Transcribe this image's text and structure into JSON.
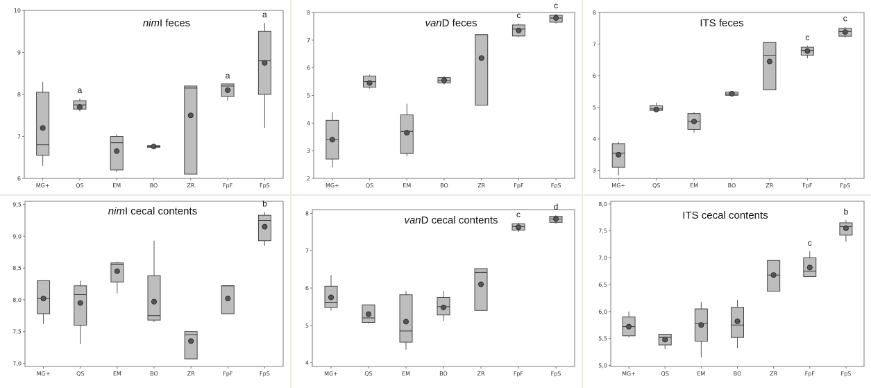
{
  "chart_data": [
    {
      "type": "boxplot",
      "title_italic": "nim",
      "title_rest": "I feces",
      "categories": [
        "MG+",
        "QS",
        "EM",
        "BO",
        "ZR",
        "FpF",
        "FpS"
      ],
      "ylim": [
        6,
        10
      ],
      "yticks": [
        "6",
        "7",
        "8",
        "9",
        "10"
      ],
      "boxes": [
        {
          "min": 6.3,
          "q1": 6.55,
          "median": 6.8,
          "q3": 8.05,
          "max": 8.3,
          "mean": 7.2
        },
        {
          "min": 7.6,
          "q1": 7.65,
          "median": 7.75,
          "q3": 7.85,
          "max": 7.9,
          "mean": 7.7
        },
        {
          "min": 6.15,
          "q1": 6.2,
          "median": 6.85,
          "q3": 7.0,
          "max": 7.05,
          "mean": 6.65
        },
        {
          "min": 6.72,
          "q1": 6.74,
          "median": 6.76,
          "q3": 6.78,
          "max": 6.8,
          "mean": 6.76
        },
        {
          "min": 6.1,
          "q1": 6.1,
          "median": 8.15,
          "q3": 8.2,
          "max": 8.2,
          "mean": 7.5
        },
        {
          "min": 7.85,
          "q1": 7.95,
          "median": 8.2,
          "q3": 8.25,
          "max": 8.25,
          "mean": 8.1
        },
        {
          "min": 7.2,
          "q1": 8.0,
          "median": 8.8,
          "q3": 9.5,
          "max": 9.7,
          "mean": 8.75
        }
      ],
      "letters": [
        "",
        "a",
        "",
        "",
        "",
        "a",
        "a"
      ]
    },
    {
      "type": "boxplot",
      "title_italic": "van",
      "title_rest": "D feces",
      "categories": [
        "MG+",
        "QS",
        "EM",
        "BO",
        "ZR",
        "FpF",
        "FpS"
      ],
      "ylim": [
        2,
        8
      ],
      "yticks": [
        "2",
        "3",
        "4",
        "5",
        "6",
        "7",
        "8"
      ],
      "boxes": [
        {
          "min": 2.4,
          "q1": 2.7,
          "median": 3.4,
          "q3": 4.1,
          "max": 4.4,
          "mean": 3.4
        },
        {
          "min": 5.25,
          "q1": 5.3,
          "median": 5.5,
          "q3": 5.7,
          "max": 5.75,
          "mean": 5.45
        },
        {
          "min": 2.8,
          "q1": 2.9,
          "median": 3.7,
          "q3": 4.3,
          "max": 4.7,
          "mean": 3.65
        },
        {
          "min": 5.4,
          "q1": 5.45,
          "median": 5.55,
          "q3": 5.65,
          "max": 5.7,
          "mean": 5.55
        },
        {
          "min": 4.65,
          "q1": 4.65,
          "median": 7.2,
          "q3": 7.2,
          "max": 7.2,
          "mean": 6.35
        },
        {
          "min": 7.1,
          "q1": 7.15,
          "median": 7.4,
          "q3": 7.55,
          "max": 7.6,
          "mean": 7.35
        },
        {
          "min": 7.6,
          "q1": 7.65,
          "median": 7.8,
          "q3": 7.9,
          "max": 7.95,
          "mean": 7.8
        }
      ],
      "letters": [
        "",
        "",
        "",
        "",
        "",
        "c",
        "c"
      ]
    },
    {
      "type": "boxplot",
      "title_italic": "",
      "title_rest": "ITS feces",
      "categories": [
        "MG+",
        "QS",
        "EM",
        "BO",
        "ZR",
        "FpF",
        "FpS"
      ],
      "ylim": [
        2.75,
        8
      ],
      "yticks": [
        "3",
        "4",
        "5",
        "6",
        "7",
        "8"
      ],
      "boxes": [
        {
          "min": 2.85,
          "q1": 3.1,
          "median": 3.55,
          "q3": 3.85,
          "max": 3.9,
          "mean": 3.5
        },
        {
          "min": 4.85,
          "q1": 4.9,
          "median": 4.95,
          "q3": 5.05,
          "max": 5.15,
          "mean": 4.93
        },
        {
          "min": 4.2,
          "q1": 4.3,
          "median": 4.55,
          "q3": 4.8,
          "max": 4.85,
          "mean": 4.55
        },
        {
          "min": 5.35,
          "q1": 5.38,
          "median": 5.42,
          "q3": 5.48,
          "max": 5.5,
          "mean": 5.43
        },
        {
          "min": 5.55,
          "q1": 5.55,
          "median": 6.65,
          "q3": 7.05,
          "max": 7.05,
          "mean": 6.45
        },
        {
          "min": 6.55,
          "q1": 6.65,
          "median": 6.8,
          "q3": 6.9,
          "max": 6.95,
          "mean": 6.78
        },
        {
          "min": 7.2,
          "q1": 7.25,
          "median": 7.4,
          "q3": 7.5,
          "max": 7.55,
          "mean": 7.38
        }
      ],
      "letters": [
        "",
        "",
        "",
        "",
        "",
        "c",
        "c"
      ]
    },
    {
      "type": "boxplot",
      "title_italic": "nim",
      "title_rest": "I cecal contents",
      "categories": [
        "MG+",
        "QS",
        "EM",
        "BO",
        "ZR",
        "FpF",
        "FpS"
      ],
      "ylim": [
        6.95,
        9.55
      ],
      "yticks": [
        "7,0",
        "7,5",
        "8,0",
        "8,5",
        "9,0",
        "9,5"
      ],
      "boxes": [
        {
          "min": 7.62,
          "q1": 7.78,
          "median": 8.02,
          "q3": 8.3,
          "max": 8.3,
          "mean": 8.02
        },
        {
          "min": 7.3,
          "q1": 7.6,
          "median": 8.08,
          "q3": 8.22,
          "max": 8.3,
          "mean": 7.95
        },
        {
          "min": 8.1,
          "q1": 8.28,
          "median": 8.55,
          "q3": 8.58,
          "max": 8.6,
          "mean": 8.45
        },
        {
          "min": 7.65,
          "q1": 7.68,
          "median": 7.75,
          "q3": 8.38,
          "max": 8.93,
          "mean": 7.97
        },
        {
          "min": 7.07,
          "q1": 7.07,
          "median": 7.45,
          "q3": 7.5,
          "max": 7.5,
          "mean": 7.35
        },
        {
          "min": 7.78,
          "q1": 7.78,
          "median": 8.22,
          "q3": 8.22,
          "max": 8.22,
          "mean": 8.02
        },
        {
          "min": 8.85,
          "q1": 8.93,
          "median": 9.25,
          "q3": 9.33,
          "max": 9.38,
          "mean": 9.15
        }
      ],
      "letters": [
        "",
        "",
        "",
        "",
        "",
        "",
        "b"
      ]
    },
    {
      "type": "boxplot",
      "title_italic": "van",
      "title_rest": "D cecal contents",
      "categories": [
        "MG+",
        "QS",
        "EM",
        "BO",
        "ZR",
        "FpF",
        "FpS"
      ],
      "ylim": [
        3.9,
        8.1
      ],
      "yticks": [
        "4",
        "5",
        "6",
        "7",
        "8"
      ],
      "boxes": [
        {
          "min": 5.4,
          "q1": 5.48,
          "median": 5.62,
          "q3": 6.05,
          "max": 6.35,
          "mean": 5.75
        },
        {
          "min": 5.05,
          "q1": 5.08,
          "median": 5.2,
          "q3": 5.55,
          "max": 5.55,
          "mean": 5.3
        },
        {
          "min": 4.35,
          "q1": 4.55,
          "median": 4.85,
          "q3": 5.82,
          "max": 5.92,
          "mean": 5.1
        },
        {
          "min": 5.12,
          "q1": 5.28,
          "median": 5.5,
          "q3": 5.75,
          "max": 5.92,
          "mean": 5.48
        },
        {
          "min": 5.4,
          "q1": 5.4,
          "median": 6.42,
          "q3": 6.52,
          "max": 6.52,
          "mean": 6.1
        },
        {
          "min": 7.5,
          "q1": 7.55,
          "median": 7.65,
          "q3": 7.72,
          "max": 7.75,
          "mean": 7.63
        },
        {
          "min": 7.72,
          "q1": 7.76,
          "median": 7.85,
          "q3": 7.92,
          "max": 7.95,
          "mean": 7.85
        }
      ],
      "letters": [
        "",
        "",
        "",
        "",
        "",
        "c",
        "d"
      ]
    },
    {
      "type": "boxplot",
      "title_italic": "",
      "title_rest": "ITS cecal contents",
      "categories": [
        "MG+",
        "QS",
        "EM",
        "BO",
        "ZR",
        "FpF",
        "FpS"
      ],
      "ylim": [
        4.98,
        8.05
      ],
      "yticks": [
        "5,0",
        "5,5",
        "6,0",
        "6,5",
        "7,0",
        "7,5",
        "8,0"
      ],
      "boxes": [
        {
          "min": 5.52,
          "q1": 5.55,
          "median": 5.72,
          "q3": 5.9,
          "max": 6.0,
          "mean": 5.72
        },
        {
          "min": 5.3,
          "q1": 5.38,
          "median": 5.52,
          "q3": 5.58,
          "max": 5.58,
          "mean": 5.48
        },
        {
          "min": 5.15,
          "q1": 5.45,
          "median": 5.78,
          "q3": 6.05,
          "max": 6.18,
          "mean": 5.75
        },
        {
          "min": 5.32,
          "q1": 5.52,
          "median": 5.75,
          "q3": 6.08,
          "max": 6.22,
          "mean": 5.82
        },
        {
          "min": 6.38,
          "q1": 6.38,
          "median": 6.68,
          "q3": 6.95,
          "max": 6.95,
          "mean": 6.68
        },
        {
          "min": 6.65,
          "q1": 6.65,
          "median": 6.75,
          "q3": 7.0,
          "max": 7.12,
          "mean": 6.82
        },
        {
          "min": 7.3,
          "q1": 7.42,
          "median": 7.58,
          "q3": 7.65,
          "max": 7.7,
          "mean": 7.55
        }
      ],
      "letters": [
        "",
        "",
        "",
        "",
        "",
        "c",
        "b"
      ]
    }
  ]
}
